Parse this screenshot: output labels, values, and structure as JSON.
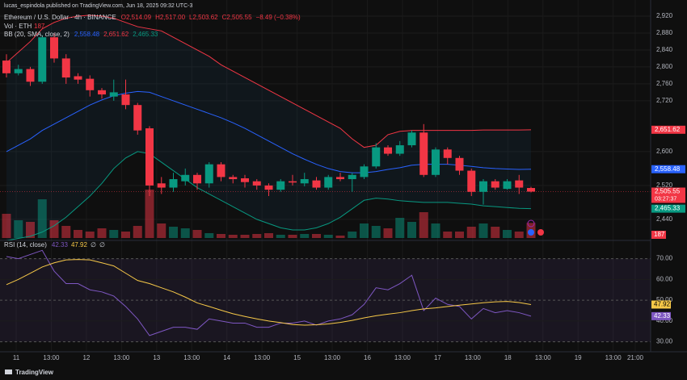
{
  "header": {
    "publisher": "lucas_espindola published on TradingView.com, Jun 18, 2025 09:32 UTC-3",
    "symbol": "Ethereum / U.S. Dollar · 4h · BINANCE",
    "ohlc": [
      "O2,514.09",
      "H2,517.00",
      "L2,503.62",
      "C2,505.55",
      "−8.49 (−0.38%)"
    ],
    "volume_label": "Vol · ETH",
    "bb_label": "BB (20, SMA, close, 2)",
    "bb_values": [
      "2,558.48",
      "2,651.62",
      "2,465.33"
    ],
    "rsi_label": "RSI (14, close)",
    "rsi_values": [
      "42.33",
      "47.92",
      "∅",
      "∅"
    ],
    "brand": "TradingView"
  },
  "chart_data": {
    "type": "candlestick",
    "open": [
      2815,
      2785,
      2795,
      2765,
      2870,
      2820,
      2778,
      2772,
      2745,
      2730,
      2735,
      2710,
      2655,
      2525,
      2515,
      2530,
      2545,
      2525,
      2570,
      2540,
      2537,
      2530,
      2520,
      2510,
      2530,
      2525,
      2532,
      2515,
      2540,
      2535,
      2540,
      2565,
      2610,
      2595,
      2615,
      2645,
      2545,
      2605,
      2585,
      2555,
      2505,
      2530,
      2512,
      2532,
      2514.09
    ],
    "high": [
      2830,
      2805,
      2800,
      2875,
      2880,
      2830,
      2785,
      2780,
      2750,
      2770,
      2770,
      2715,
      2660,
      2540,
      2550,
      2560,
      2550,
      2575,
      2575,
      2545,
      2545,
      2535,
      2525,
      2535,
      2545,
      2550,
      2540,
      2545,
      2550,
      2550,
      2570,
      2620,
      2615,
      2625,
      2650,
      2665,
      2610,
      2610,
      2590,
      2560,
      2535,
      2535,
      2535,
      2545,
      2517
    ],
    "low": [
      2775,
      2780,
      2755,
      2760,
      2810,
      2760,
      2760,
      2730,
      2725,
      2720,
      2700,
      2640,
      2495,
      2500,
      2505,
      2520,
      2510,
      2515,
      2530,
      2525,
      2515,
      2510,
      2495,
      2505,
      2520,
      2518,
      2510,
      2510,
      2530,
      2505,
      2535,
      2560,
      2590,
      2590,
      2610,
      2540,
      2540,
      2570,
      2545,
      2495,
      2475,
      2510,
      2510,
      2500,
      2503.62
    ],
    "close": [
      2785,
      2795,
      2765,
      2870,
      2820,
      2775,
      2770,
      2745,
      2735,
      2740,
      2710,
      2650,
      2520,
      2515,
      2535,
      2545,
      2525,
      2570,
      2540,
      2535,
      2528,
      2520,
      2510,
      2530,
      2527,
      2535,
      2515,
      2540,
      2535,
      2545,
      2565,
      2610,
      2595,
      2615,
      2645,
      2545,
      2605,
      2585,
      2555,
      2505,
      2530,
      2515,
      2530,
      2515,
      2505.55
    ],
    "volume": [
      300,
      220,
      200,
      480,
      220,
      150,
      100,
      80,
      120,
      100,
      80,
      150,
      600,
      180,
      140,
      120,
      100,
      60,
      50,
      40,
      40,
      50,
      60,
      40,
      40,
      50,
      50,
      40,
      30,
      80,
      180,
      150,
      120,
      250,
      200,
      320,
      180,
      80,
      80,
      140,
      180,
      140,
      100,
      80,
      187
    ],
    "bb_upper": [
      2810,
      2835,
      2860,
      2890,
      2905,
      2915,
      2920,
      2922,
      2920,
      2915,
      2905,
      2895,
      2890,
      2885,
      2870,
      2855,
      2840,
      2825,
      2805,
      2790,
      2775,
      2760,
      2745,
      2730,
      2715,
      2700,
      2685,
      2670,
      2655,
      2630,
      2610,
      2615,
      2640,
      2648,
      2650,
      2650,
      2650,
      2650,
      2650,
      2650,
      2651,
      2651,
      2651,
      2651,
      2651.62
    ],
    "bb_middle": [
      2600,
      2615,
      2630,
      2650,
      2665,
      2680,
      2695,
      2710,
      2722,
      2732,
      2738,
      2742,
      2740,
      2730,
      2720,
      2710,
      2700,
      2690,
      2680,
      2668,
      2655,
      2640,
      2625,
      2610,
      2595,
      2582,
      2570,
      2560,
      2553,
      2550,
      2550,
      2553,
      2558,
      2562,
      2568,
      2570,
      2570,
      2570,
      2568,
      2565,
      2562,
      2560,
      2559,
      2558,
      2558.48
    ],
    "bb_lower": [
      2390,
      2395,
      2400,
      2410,
      2425,
      2445,
      2470,
      2495,
      2525,
      2560,
      2585,
      2600,
      2595,
      2575,
      2555,
      2535,
      2515,
      2500,
      2485,
      2470,
      2455,
      2440,
      2430,
      2420,
      2415,
      2415,
      2420,
      2430,
      2445,
      2465,
      2485,
      2490,
      2488,
      2484,
      2482,
      2480,
      2480,
      2480,
      2478,
      2476,
      2472,
      2470,
      2468,
      2466,
      2465.33
    ],
    "up_color": "#089981",
    "down_color": "#f23645",
    "bb_colors": {
      "upper": "#f23645",
      "middle": "#2962ff",
      "lower": "#089981"
    },
    "ylim": [
      2396,
      2958
    ],
    "yticks": [
      {
        "value": 2920,
        "label": "2,920"
      },
      {
        "value": 2880,
        "label": "2,880"
      },
      {
        "value": 2840,
        "label": "2,840"
      },
      {
        "value": 2800,
        "label": "2,800"
      },
      {
        "value": 2760,
        "label": "2,760"
      },
      {
        "value": 2720,
        "label": "2,720"
      },
      {
        "value": 2600,
        "label": "2,600"
      },
      {
        "value": 2520,
        "label": "2,520"
      },
      {
        "value": 2440,
        "label": "2,440"
      }
    ],
    "price_labels": [
      {
        "value": 2651.62,
        "label": "2,651.62",
        "color": "#f23645"
      },
      {
        "value": 2558.48,
        "label": "2,558.48",
        "color": "#2962ff"
      },
      {
        "value": 2505.55,
        "label": "2,505.55",
        "color": "#f23645",
        "countdown": "03:27:37"
      },
      {
        "value": 2465.33,
        "label": "2,465.33",
        "color": "#089981"
      }
    ],
    "x_labels": [
      "11",
      "13:00",
      "12",
      "13:00",
      "13",
      "13:00",
      "14",
      "13:00",
      "15",
      "13:00",
      "16",
      "13:00",
      "17",
      "13:00",
      "18",
      "13:00",
      "19",
      "13:00",
      "21:00"
    ],
    "rsi": {
      "values": [
        71,
        70,
        72,
        74,
        64,
        58,
        58,
        55,
        54,
        52,
        47,
        41,
        33,
        35,
        37,
        37,
        36,
        41,
        40,
        39,
        39,
        37,
        37,
        39,
        39,
        40,
        38,
        40,
        41,
        43,
        48,
        56,
        55,
        58,
        62,
        45,
        51,
        48,
        47,
        41,
        46,
        44,
        45,
        44,
        42.33
      ],
      "ma": [
        57.5,
        60,
        63,
        66,
        68,
        69.4,
        69.6,
        69.4,
        68,
        66.5,
        63,
        59.5,
        58,
        56,
        54,
        51.5,
        48.7,
        47,
        45.2,
        43.5,
        42.2,
        41,
        40,
        39.2,
        38.3,
        38,
        38.2,
        38.6,
        39.3,
        40.3,
        41.5,
        42.5,
        43.3,
        44,
        45,
        45.8,
        46.3,
        47,
        47.6,
        48.2,
        48.8,
        49.2,
        49.4,
        48.9,
        47.92
      ],
      "color": "#7e57c2",
      "ma_color": "#f7c948",
      "ylim": [
        25,
        78
      ],
      "yticks": [
        {
          "value": 70,
          "label": "70.00"
        },
        {
          "value": 60,
          "label": "60.00"
        },
        {
          "value": 50,
          "label": "50.00"
        },
        {
          "value": 40,
          "label": "40.00"
        },
        {
          "value": 30,
          "label": "30.00"
        }
      ],
      "value_labels": [
        {
          "value": 47.92,
          "label": "47.92"
        },
        {
          "value": 42.33,
          "label": "42.33"
        }
      ]
    }
  }
}
